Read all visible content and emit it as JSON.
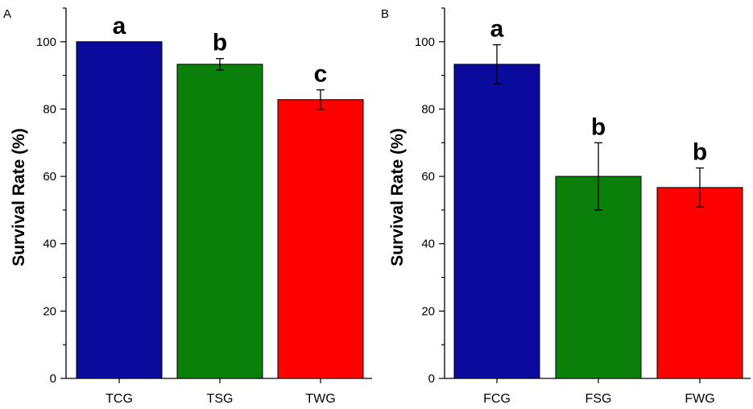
{
  "chart_data": [
    {
      "panel": "A",
      "type": "bar",
      "categories": [
        "TCG",
        "TSG",
        "TWG"
      ],
      "values": [
        100,
        93.3,
        82.8
      ],
      "errors": [
        0,
        1.7,
        2.9
      ],
      "significance": [
        "a",
        "b",
        "c"
      ],
      "colors": [
        "#0a0a9c",
        "#0a800a",
        "#ff0000"
      ],
      "ylabel": "Survival Rate (%)",
      "xlabel": "",
      "ylim": [
        0,
        110
      ],
      "yticks": [
        0,
        20,
        40,
        60,
        80,
        100
      ]
    },
    {
      "panel": "B",
      "type": "bar",
      "categories": [
        "FCG",
        "FSG",
        "FWG"
      ],
      "values": [
        93.3,
        60,
        56.7
      ],
      "errors": [
        5.8,
        10,
        5.8
      ],
      "significance": [
        "a",
        "b",
        "b"
      ],
      "colors": [
        "#0a0a9c",
        "#0a800a",
        "#ff0000"
      ],
      "ylabel": "Survival Rate (%)",
      "xlabel": "",
      "ylim": [
        0,
        110
      ],
      "yticks": [
        0,
        20,
        40,
        60,
        80,
        100
      ]
    }
  ]
}
